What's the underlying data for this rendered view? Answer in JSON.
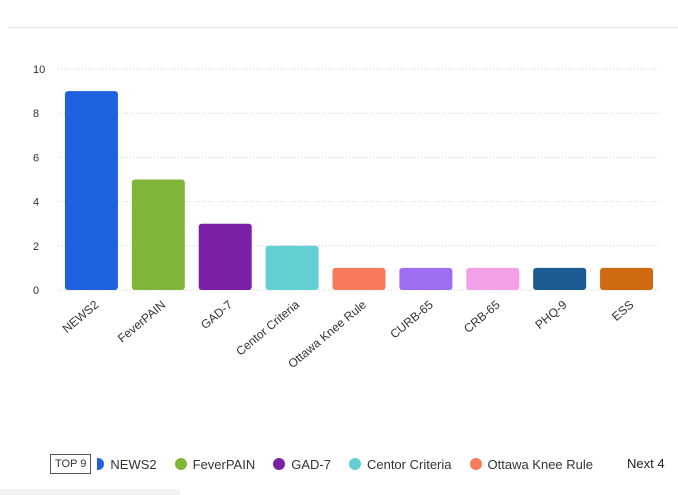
{
  "chart_data": {
    "type": "bar",
    "categories": [
      "NEWS2",
      "FeverPAIN",
      "GAD-7",
      "Centor Criteria",
      "Ottawa Knee Rule",
      "CURB-65",
      "CRB-65",
      "PHQ-9",
      "ESS"
    ],
    "values": [
      9,
      5,
      3,
      2,
      1,
      1,
      1,
      1,
      1
    ],
    "colors": [
      "#1f62e0",
      "#7fb63a",
      "#7a1fa6",
      "#62cfd3",
      "#f77a5c",
      "#9e6ef2",
      "#f4a0e8",
      "#1b5b91",
      "#cf6a12"
    ],
    "ylim": [
      0,
      10
    ],
    "yticks": [
      "0",
      "2",
      "4",
      "6",
      "8",
      "10"
    ],
    "grid": true,
    "title": "",
    "xlabel": "",
    "ylabel": ""
  },
  "legend": {
    "badge": "TOP 9",
    "items": [
      {
        "label": "NEWS2",
        "color": "#1f62e0"
      },
      {
        "label": "FeverPAIN",
        "color": "#7fb63a"
      },
      {
        "label": "GAD-7",
        "color": "#7a1fa6"
      },
      {
        "label": "Centor Criteria",
        "color": "#62cfd3"
      },
      {
        "label": "Ottawa Knee Rule",
        "color": "#f77a5c"
      }
    ],
    "next_label": "Next 4"
  }
}
